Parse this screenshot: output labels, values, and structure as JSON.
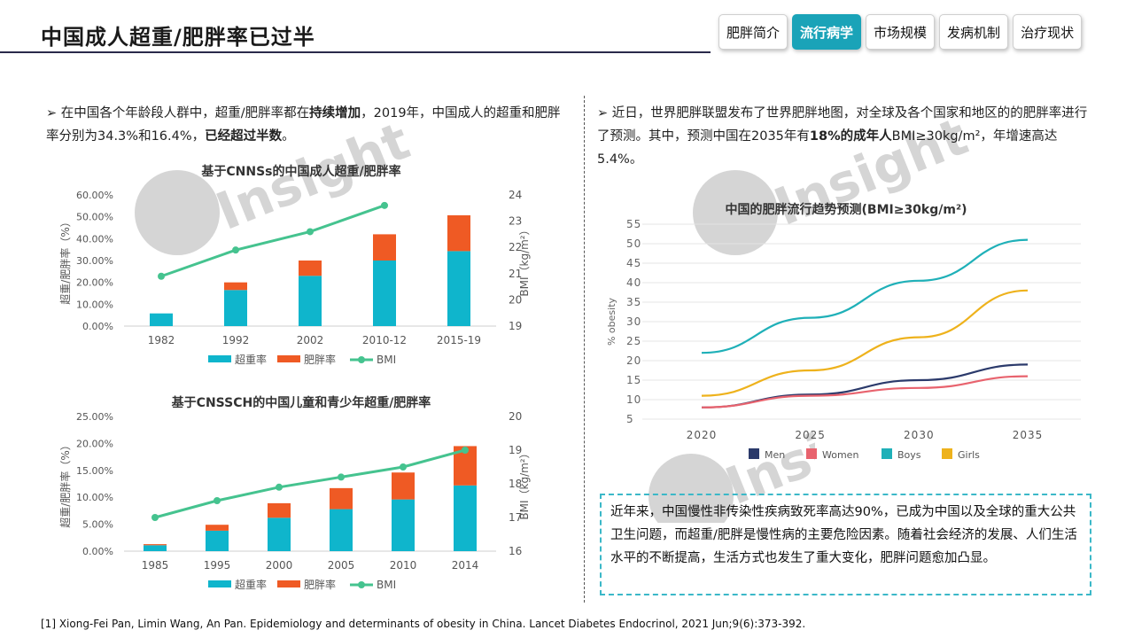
{
  "header": {
    "title": "中国成人超重/肥胖率已过半"
  },
  "tabs": [
    {
      "label": "肥胖简介"
    },
    {
      "label": "流行病学"
    },
    {
      "label": "市场规模"
    },
    {
      "label": "发病机制"
    },
    {
      "label": "治疗现状"
    }
  ],
  "left_bullet": {
    "marker": "➢",
    "part1": "在中国各个年龄段人群中，超重/肥胖率都在",
    "bold1": "持续增加",
    "part2": "，2019年，中国成人的超重和肥胖率分别为34.3%和16.4%，",
    "bold2": "已经超过半数",
    "part3": "。"
  },
  "right_bullet": {
    "marker": "➢",
    "part1": "近日，世界肥胖联盟发布了世界肥胖地图，对全球及各个国家和地区的的肥胖率进行了预测。其中，预测中国在2035年有",
    "bold1": "18%的成年人",
    "part2": "BMI≥30kg/m²，年增速高达5.4%。"
  },
  "watermark": "Insight",
  "callout": {
    "text": "近年来，中国慢性非传染性疾病致死率高达90%，已成为中国以及全球的重大公共卫生问题，而超重/肥胖是慢性病的主要危险因素。随着社会经济的发展、人们生活水平的不断提高，生活方式也发生了重大变化，肥胖问题愈加凸显。"
  },
  "footnote": "[1] Xiong-Fei Pan, Limin Wang, An Pan. Epidemiology and determinants of obesity in China. Lancet Diabetes Endocrinol, 2021 Jun;9(6):373-392.",
  "colors": {
    "overweight": "#0fb5cc",
    "obese": "#ef5a24",
    "bmi": "#45c38f",
    "men": "#2b3a6b",
    "women": "#e8636e",
    "boys": "#1fb0b8",
    "girls": "#eeb21c",
    "accent": "#1aa3b8"
  },
  "chart_data": [
    {
      "type": "bar",
      "title": "基于CNNSs的中国成人超重/肥胖率",
      "categories": [
        "1982",
        "1992",
        "2002",
        "2010-12",
        "2015-19"
      ],
      "series": [
        {
          "name": "超重率",
          "values": [
            5.8,
            16.5,
            23.0,
            30.0,
            34.3
          ]
        },
        {
          "name": "肥胖率",
          "values": [
            0.0,
            3.5,
            7.0,
            12.0,
            16.4
          ]
        }
      ],
      "line_series": {
        "name": "BMI",
        "values": [
          20.9,
          21.9,
          22.6,
          23.6,
          null
        ]
      },
      "ylabel": "超重/肥胖率（%）",
      "y2label": "BMI（kg/m²）",
      "ylim": [
        0,
        60
      ],
      "y2lim": [
        19,
        24
      ],
      "yticks": [
        "0.00%",
        "10.00%",
        "20.00%",
        "30.00%",
        "40.00%",
        "50.00%",
        "60.00%"
      ],
      "y2ticks": [
        "19",
        "20",
        "21",
        "22",
        "23",
        "24"
      ],
      "legend": [
        "超重率",
        "肥胖率",
        "BMI"
      ]
    },
    {
      "type": "bar",
      "title": "基于CNSSCH的中国儿童和青少年超重/肥胖率",
      "categories": [
        "1985",
        "1995",
        "2000",
        "2005",
        "2010",
        "2014"
      ],
      "series": [
        {
          "name": "超重率",
          "values": [
            1.1,
            3.8,
            6.2,
            7.8,
            9.6,
            12.2
          ]
        },
        {
          "name": "肥胖率",
          "values": [
            0.2,
            1.1,
            2.7,
            3.9,
            5.0,
            7.3
          ]
        }
      ],
      "line_series": {
        "name": "BMI",
        "values": [
          17.0,
          17.5,
          17.9,
          18.2,
          18.5,
          19.0
        ]
      },
      "ylabel": "超重/肥胖率（%）",
      "y2label": "BMI（kg/m²）",
      "ylim": [
        0,
        25
      ],
      "y2lim": [
        16,
        20
      ],
      "yticks": [
        "0.00%",
        "5.00%",
        "10.00%",
        "15.00%",
        "20.00%",
        "25.00%"
      ],
      "y2ticks": [
        "16",
        "17",
        "18",
        "19",
        "20"
      ],
      "legend": [
        "超重率",
        "肥胖率",
        "BMI"
      ]
    },
    {
      "type": "line",
      "title": "中国的肥胖流行趋势预测(BMI≥30kg/m²)",
      "x": [
        2020,
        2025,
        2030,
        2035
      ],
      "series": [
        {
          "name": "Men",
          "values": [
            8.0,
            11.3,
            15.0,
            19.0
          ]
        },
        {
          "name": "Women",
          "values": [
            8.0,
            11.0,
            13.0,
            16.0
          ]
        },
        {
          "name": "Boys",
          "values": [
            22.0,
            31.0,
            40.5,
            51.0
          ]
        },
        {
          "name": "Girls",
          "values": [
            11.0,
            17.5,
            26.0,
            38.0
          ]
        }
      ],
      "ylabel": "% obesity",
      "yticks": [
        "5",
        "10",
        "15",
        "20",
        "25",
        "30",
        "35",
        "40",
        "45",
        "50",
        "55"
      ],
      "xticks": [
        "2020",
        "2025",
        "2030",
        "2035"
      ],
      "ylim": [
        5,
        55
      ],
      "legend": [
        "Men",
        "Women",
        "Boys",
        "Girls"
      ]
    }
  ]
}
